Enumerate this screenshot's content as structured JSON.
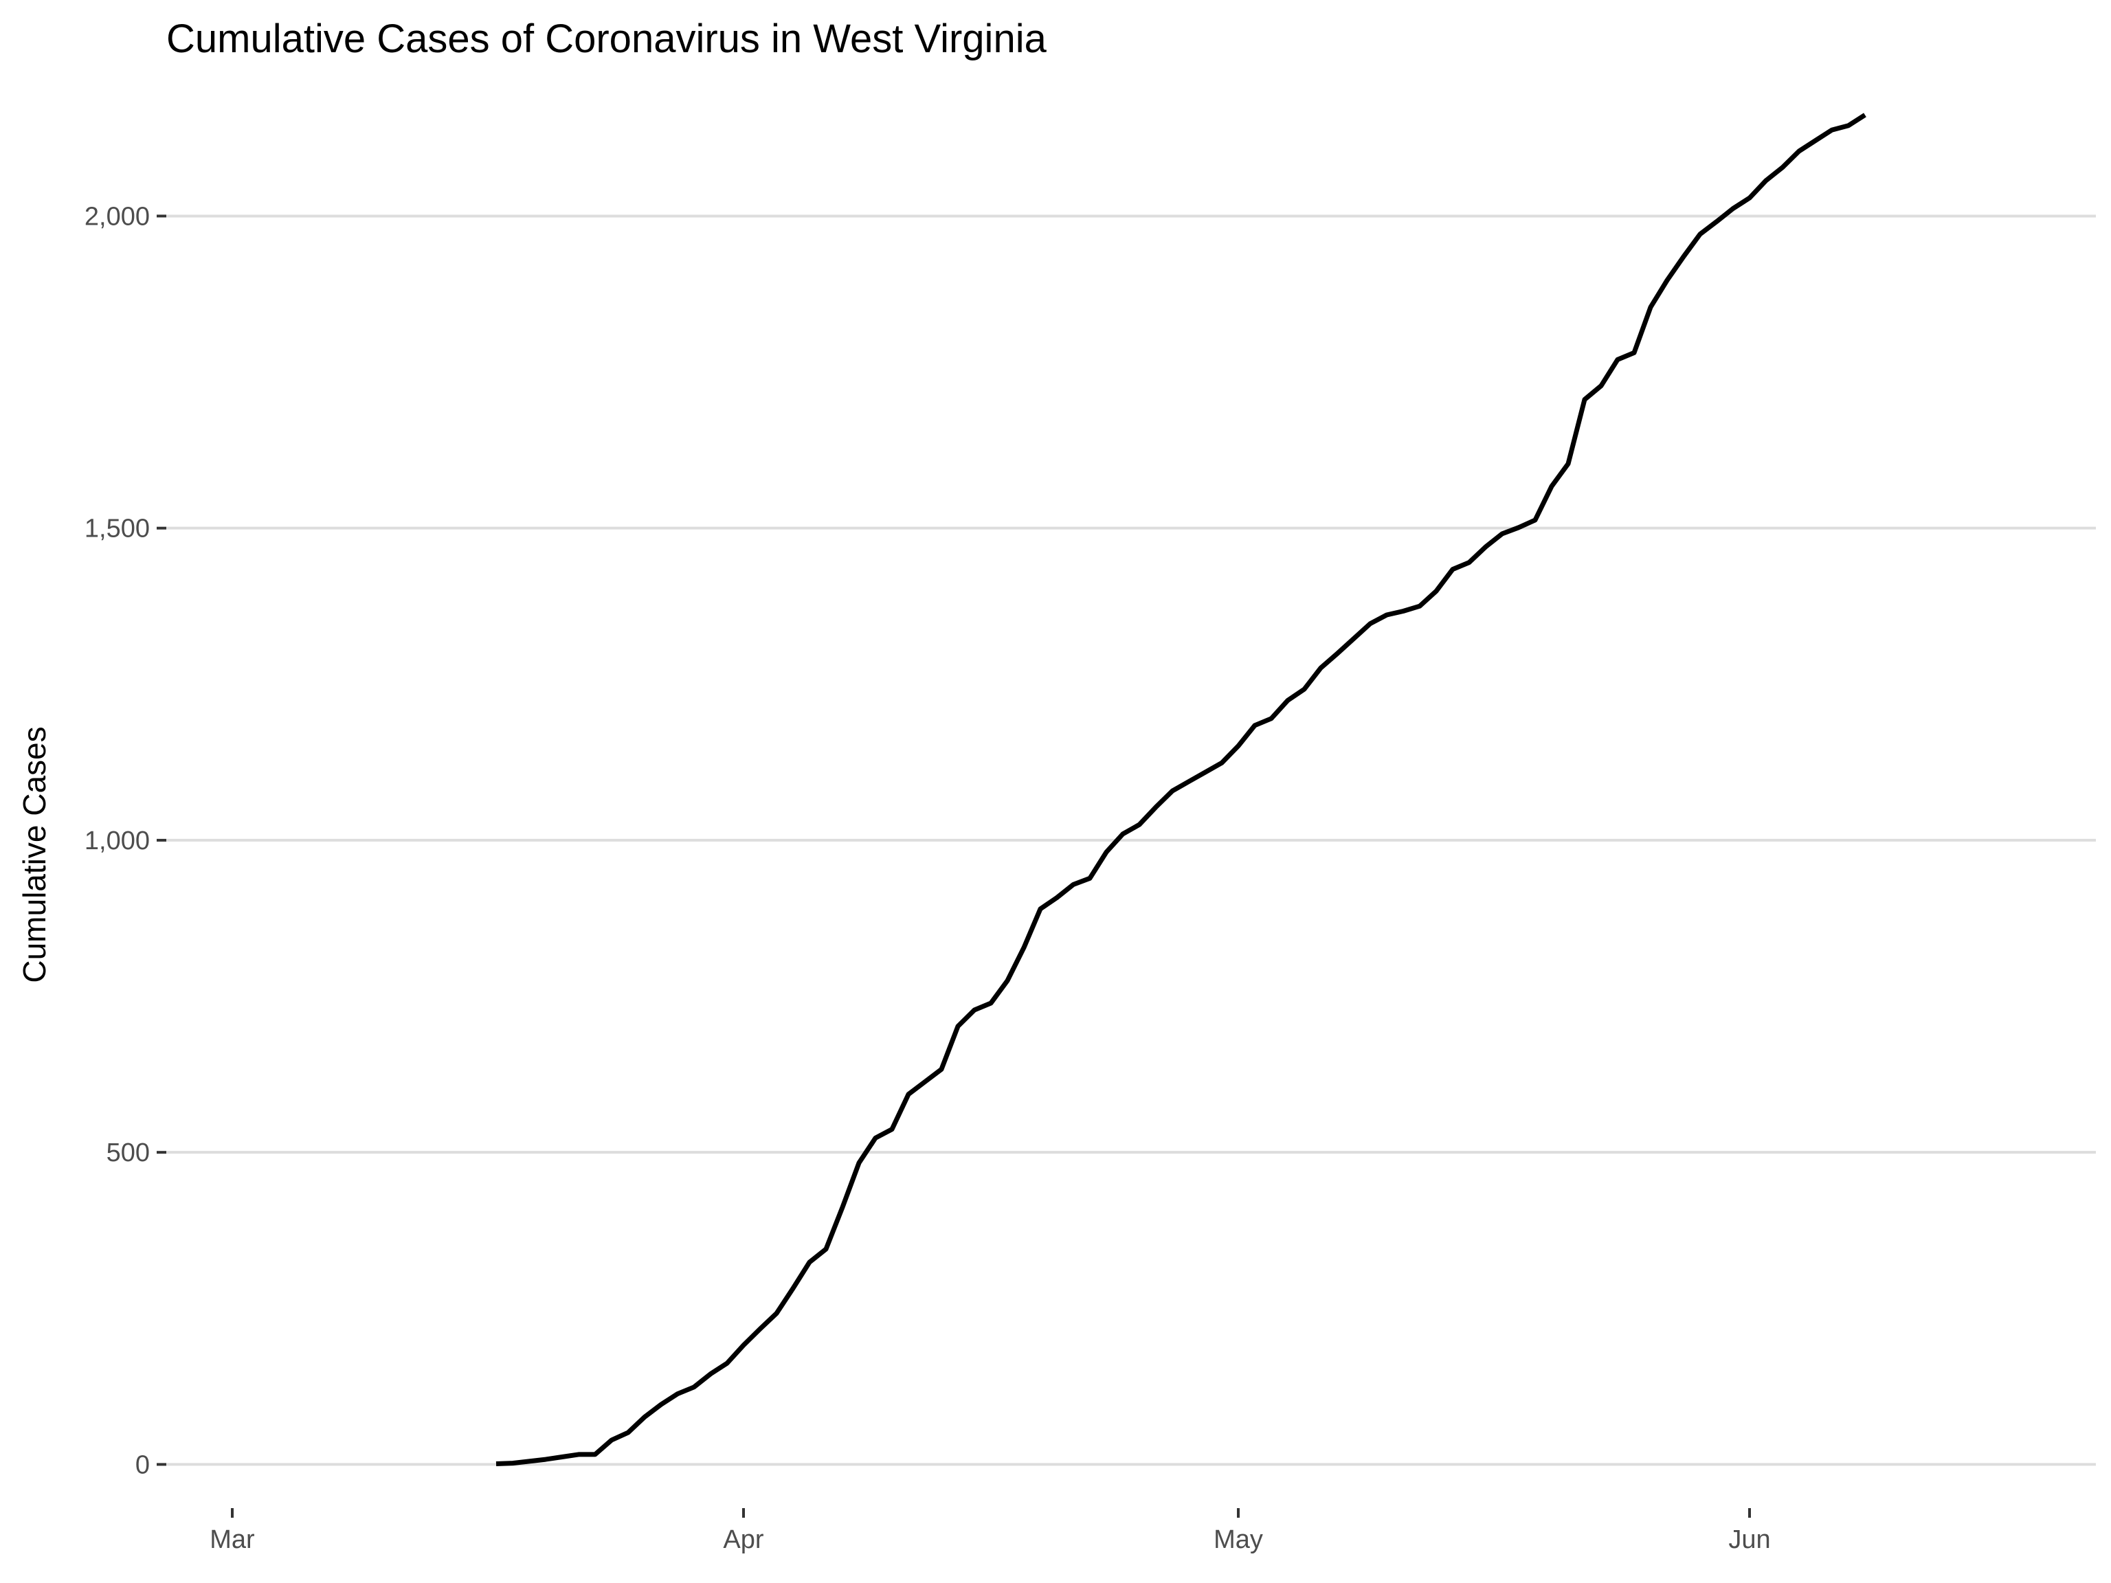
{
  "chart_data": {
    "type": "line",
    "title": "Cumulative Cases of Coronavirus in West Virginia",
    "xlabel": "",
    "ylabel": "Cumulative Cases",
    "x_scale": "date",
    "xlim": [
      "2020-02-26",
      "2020-06-22"
    ],
    "ylim": [
      -70,
      2170
    ],
    "x_ticks": [
      {
        "date": "2020-03-01",
        "label": "Mar"
      },
      {
        "date": "2020-04-01",
        "label": "Apr"
      },
      {
        "date": "2020-05-01",
        "label": "May"
      },
      {
        "date": "2020-06-01",
        "label": "Jun"
      }
    ],
    "y_ticks": [
      {
        "value": 0,
        "label": "0"
      },
      {
        "value": 500,
        "label": "500"
      },
      {
        "value": 1000,
        "label": "1,000"
      },
      {
        "value": 1500,
        "label": "1,500"
      },
      {
        "value": 2000,
        "label": "2,000"
      }
    ],
    "grid": {
      "major_y": true,
      "major_x": false
    },
    "legend": "none",
    "line_color": "#000000",
    "grid_color": "#dddddd",
    "series": [
      {
        "x": [
          "2020-03-17",
          "2020-03-18",
          "2020-03-19",
          "2020-03-20",
          "2020-03-21",
          "2020-03-22",
          "2020-03-23",
          "2020-03-24",
          "2020-03-25",
          "2020-03-26",
          "2020-03-27",
          "2020-03-28",
          "2020-03-29",
          "2020-03-30",
          "2020-03-31",
          "2020-04-01",
          "2020-04-02",
          "2020-04-03",
          "2020-04-04",
          "2020-04-05",
          "2020-04-06",
          "2020-04-07",
          "2020-04-08",
          "2020-04-09",
          "2020-04-10",
          "2020-04-11",
          "2020-04-12",
          "2020-04-13",
          "2020-04-14",
          "2020-04-15",
          "2020-04-16",
          "2020-04-17",
          "2020-04-18",
          "2020-04-19",
          "2020-04-20",
          "2020-04-21",
          "2020-04-22",
          "2020-04-23",
          "2020-04-24",
          "2020-04-25",
          "2020-04-26",
          "2020-04-27",
          "2020-04-28",
          "2020-04-29",
          "2020-04-30",
          "2020-05-01",
          "2020-05-02",
          "2020-05-03",
          "2020-05-04",
          "2020-05-05",
          "2020-05-06",
          "2020-05-07",
          "2020-05-08",
          "2020-05-09",
          "2020-05-10",
          "2020-05-11",
          "2020-05-12",
          "2020-05-13",
          "2020-05-14",
          "2020-05-15",
          "2020-05-16",
          "2020-05-17",
          "2020-05-18",
          "2020-05-19",
          "2020-05-20",
          "2020-05-21",
          "2020-05-22",
          "2020-05-23",
          "2020-05-24",
          "2020-05-25",
          "2020-05-26",
          "2020-05-27",
          "2020-05-28",
          "2020-05-29",
          "2020-05-30",
          "2020-05-31",
          "2020-06-01",
          "2020-06-02",
          "2020-06-03",
          "2020-06-04",
          "2020-06-05",
          "2020-06-06",
          "2020-06-07",
          "2020-06-08"
        ],
        "values": [
          1,
          2,
          5,
          8,
          12,
          16,
          16,
          39,
          51,
          76,
          96,
          113,
          124,
          145,
          162,
          191,
          217,
          242,
          282,
          324,
          345,
          412,
          483,
          523,
          537,
          593,
          613,
          633,
          702,
          728,
          739,
          775,
          828,
          890,
          908,
          929,
          939,
          981,
          1010,
          1025,
          1053,
          1079,
          1094,
          1109,
          1124,
          1151,
          1184,
          1195,
          1224,
          1242,
          1276,
          1299,
          1323,
          1347,
          1361,
          1367,
          1375,
          1399,
          1434,
          1445,
          1470,
          1491,
          1501,
          1513,
          1567,
          1603,
          1706,
          1728,
          1770,
          1781,
          1854,
          1897,
          1935,
          1971,
          1991,
          2012,
          2029,
          2057,
          2078,
          2104,
          2121,
          2138,
          2145,
          2162
        ]
      }
    ]
  }
}
